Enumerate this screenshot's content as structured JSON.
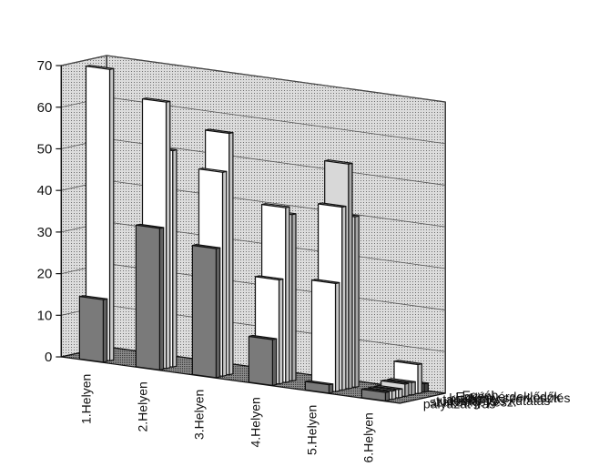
{
  "chart_data": {
    "type": "bar",
    "three_d": true,
    "title": "",
    "xlabel": "",
    "ylabel": "",
    "ylim": [
      0,
      70
    ],
    "y_ticks": [
      0,
      10,
      20,
      30,
      40,
      50,
      60,
      70
    ],
    "grid": true,
    "categories": [
      "1.Helyen",
      "2.Helyen",
      "3.Helyen",
      "4.Helyen",
      "5.Helyen",
      "6.Helyen"
    ],
    "series": [
      {
        "name": "pályázat írás",
        "color": "#7a7a7a",
        "values": [
          15,
          34,
          31,
          11,
          2,
          2
        ]
      },
      {
        "name": "szakdolg. kész.",
        "color": "#ffffff",
        "values": [
          70,
          64,
          49,
          25,
          26,
          2
        ]
      },
      {
        "name": "tudományos kutatás",
        "color": "#ffffff",
        "values": [
          0,
          52,
          58,
          42,
          44,
          2
        ]
      },
      {
        "name": "tanulás",
        "color": "#d8d8d8",
        "values": [
          0,
          0,
          0,
          40,
          54,
          3
        ]
      },
      {
        "name": "kiadvány szerkesztés",
        "color": "#d8d8d8",
        "values": [
          0,
          0,
          0,
          0,
          41,
          3
        ]
      },
      {
        "name": "Egyéni érdeklődők",
        "color": "#ffffff",
        "values": [
          0,
          0,
          0,
          0,
          0,
          7
        ]
      },
      {
        "name": "Egyéb",
        "color": "#555555",
        "values": [
          0,
          0,
          0,
          0,
          0,
          2
        ]
      }
    ]
  }
}
